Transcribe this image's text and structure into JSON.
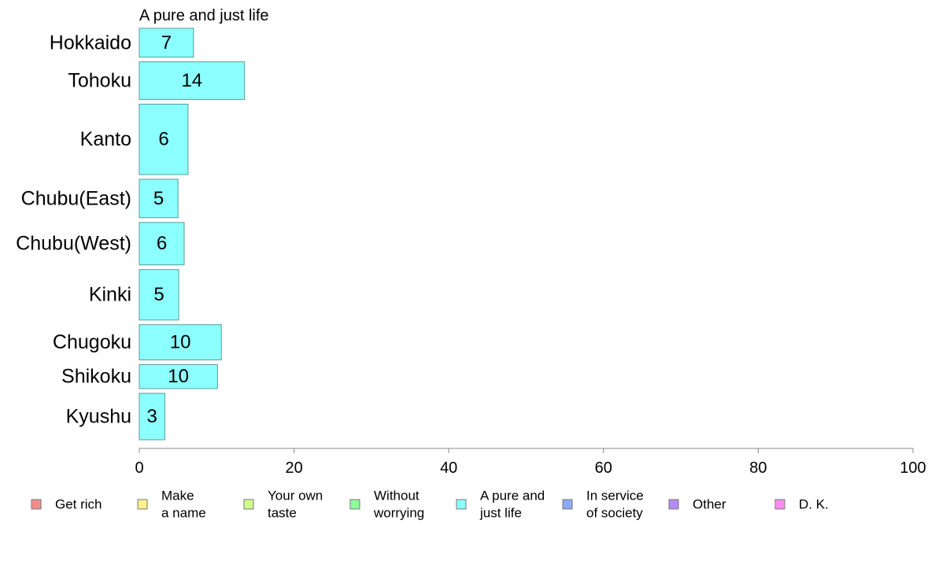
{
  "chart_data": {
    "type": "bar",
    "orientation": "horizontal",
    "title": "A pure and just life",
    "categories": [
      "Hokkaido",
      "Tohoku",
      "Kanto",
      "Chubu(East)",
      "Chubu(West)",
      "Kinki",
      "Chugoku",
      "Shikoku",
      "Kyushu"
    ],
    "values": [
      7,
      14,
      6,
      5,
      6,
      5,
      10,
      10,
      3
    ],
    "bar_value_fractions": [
      0.07,
      0.136,
      0.063,
      0.05,
      0.058,
      0.051,
      0.106,
      0.101,
      0.033
    ],
    "bar_thickness_weights": [
      36,
      47,
      88,
      48,
      53,
      63,
      44,
      30,
      58
    ],
    "xlim": [
      0,
      100
    ],
    "xticks": [
      0,
      20,
      40,
      60,
      80,
      100
    ],
    "bar_color": "#8cffff",
    "bar_edge_color": "#5a9a9a",
    "axis_color": "#888888",
    "legend": {
      "placement": "bottom",
      "items": [
        {
          "label_lines": [
            "Get rich"
          ],
          "color": "#f58c8c"
        },
        {
          "label_lines": [
            "Make",
            "a name"
          ],
          "color": "#fff08c"
        },
        {
          "label_lines": [
            "Your own",
            "taste"
          ],
          "color": "#d2ff8c"
        },
        {
          "label_lines": [
            "Without",
            "worrying"
          ],
          "color": "#8cff9c"
        },
        {
          "label_lines": [
            "A pure and",
            "just life"
          ],
          "color": "#8cffff"
        },
        {
          "label_lines": [
            "In service",
            "of society"
          ],
          "color": "#8caaf5"
        },
        {
          "label_lines": [
            "Other"
          ],
          "color": "#b48cf5"
        },
        {
          "label_lines": [
            "D. K."
          ],
          "color": "#ff8cf0"
        }
      ]
    }
  }
}
